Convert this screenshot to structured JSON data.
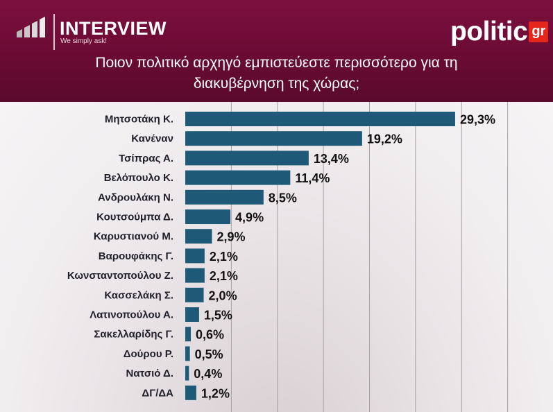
{
  "header": {
    "brand_title": "INTERVIEW",
    "brand_tagline": "We simply ask!",
    "politic_word": "politic",
    "politic_badge": "gr",
    "question_line1": "Ποιον πολιτικό αρχηγό εμπιστεύεστε περισσότερο για τη",
    "question_line2": "διακυβέρνηση της χώρας;"
  },
  "colors": {
    "header_bg": "#6a0b34",
    "bar": "#1e5a78",
    "grid": "#a9a0a4",
    "badge": "#e5261c"
  },
  "icons": [
    "interview-bars-icon"
  ],
  "chart_data": {
    "type": "bar",
    "orientation": "horizontal",
    "title": "Ποιον πολιτικό αρχηγό εμπιστεύεστε περισσότερο για τη διακυβέρνηση της χώρας;",
    "xlabel": "",
    "ylabel": "",
    "xlim": [
      0,
      40
    ],
    "grid": true,
    "legend": "none",
    "categories": [
      "Μητσοτάκη Κ.",
      "Κανέναν",
      "Τσίπρας Α.",
      "Βελόπουλο Κ.",
      "Ανδρουλάκη Ν.",
      "Κουτσούμπα Δ.",
      "Καρυστιανού Μ.",
      "Βαρουφάκης Γ.",
      "Κωνσταντοπούλου Ζ.",
      "Κασσελάκη Σ.",
      "Λατινοπούλου Α.",
      "Σακελλαρίδης Γ.",
      "Δούρου Ρ.",
      "Νατσιό Δ.",
      "ΔΓ/ΔΑ"
    ],
    "values": [
      29.3,
      19.2,
      13.4,
      11.4,
      8.5,
      4.9,
      2.9,
      2.1,
      2.1,
      2.0,
      1.5,
      0.6,
      0.5,
      0.4,
      1.2
    ],
    "value_labels": [
      "29,3%",
      "19,2%",
      "13,4%",
      "11,4%",
      "8,5%",
      "4,9%",
      "2,9%",
      "2,1%",
      "2,1%",
      "2,0%",
      "1,5%",
      "0,6%",
      "0,5%",
      "0,4%",
      "1,2%"
    ]
  }
}
